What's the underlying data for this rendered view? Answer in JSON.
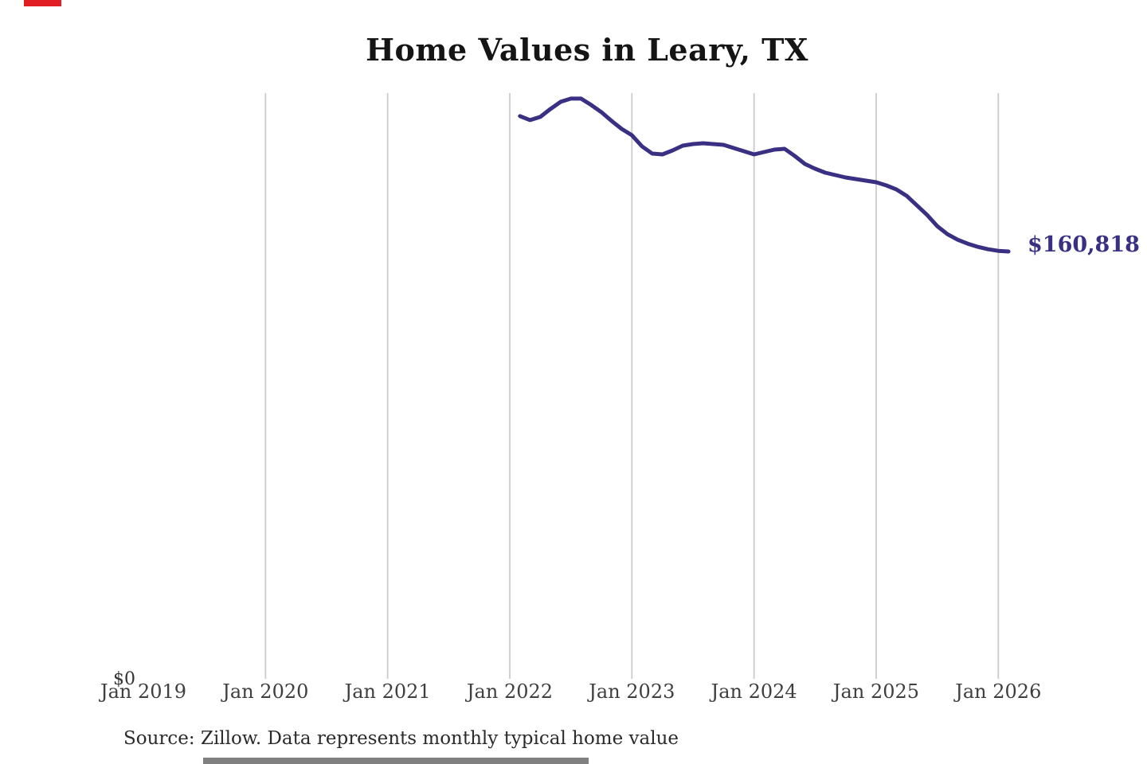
{
  "header": {
    "title": "Home Values in Leary, TX"
  },
  "footer": {
    "source_note": "Source: Zillow. Data represents monthly typical home value"
  },
  "artifacts": {
    "top_left_marker_color": "#e01e24",
    "bottom_cutoff_bar_color": "#808080"
  },
  "chart_data": {
    "type": "line",
    "title": "Home Values in Leary, TX",
    "series_name": "Monthly typical home value",
    "legend": "none",
    "grid": "vertical-only",
    "line_color": "#393084",
    "grid_color": "#cbcbcb",
    "tick_text_color": "#3f3f3f",
    "x_ticks": [
      "Jan 2019",
      "Jan 2020",
      "Jan 2021",
      "Jan 2022",
      "Jan 2023",
      "Jan 2024",
      "Jan 2025",
      "Jan 2026"
    ],
    "y_axis": {
      "zero_label": "$0",
      "min": 0,
      "approx_top_of_plot_value": 220000
    },
    "end_label": "$160,818",
    "end_value": 160818,
    "months": [
      "Feb 2022",
      "Mar 2022",
      "Apr 2022",
      "May 2022",
      "Jun 2022",
      "Jul 2022",
      "Aug 2022",
      "Sep 2022",
      "Oct 2022",
      "Nov 2022",
      "Dec 2022",
      "Jan 2023",
      "Feb 2023",
      "Mar 2023",
      "Apr 2023",
      "May 2023",
      "Jun 2023",
      "Jul 2023",
      "Aug 2023",
      "Sep 2023",
      "Oct 2023",
      "Nov 2023",
      "Dec 2023",
      "Jan 2024",
      "Feb 2024",
      "Mar 2024",
      "Apr 2024",
      "May 2024",
      "Jun 2024",
      "Jul 2024",
      "Aug 2024",
      "Sep 2024",
      "Oct 2024",
      "Nov 2024",
      "Dec 2024",
      "Jan 2025",
      "Feb 2025",
      "Mar 2025",
      "Apr 2025",
      "May 2025",
      "Jun 2025",
      "Jul 2025",
      "Aug 2025",
      "Sep 2025",
      "Oct 2025",
      "Nov 2025",
      "Dec 2025",
      "Jan 2026",
      "Feb 2026"
    ],
    "values": [
      211750,
      210250,
      211450,
      214450,
      217150,
      218350,
      218350,
      215950,
      213250,
      209950,
      206950,
      204560,
      200360,
      197660,
      197360,
      198860,
      200660,
      201260,
      201560,
      201260,
      200960,
      199760,
      198560,
      197360,
      198260,
      199160,
      199460,
      196760,
      193760,
      191960,
      190460,
      189560,
      188660,
      188060,
      187460,
      186860,
      185660,
      184160,
      181760,
      178160,
      174560,
      170360,
      167360,
      165260,
      163760,
      162560,
      161660,
      161060,
      160818
    ]
  }
}
